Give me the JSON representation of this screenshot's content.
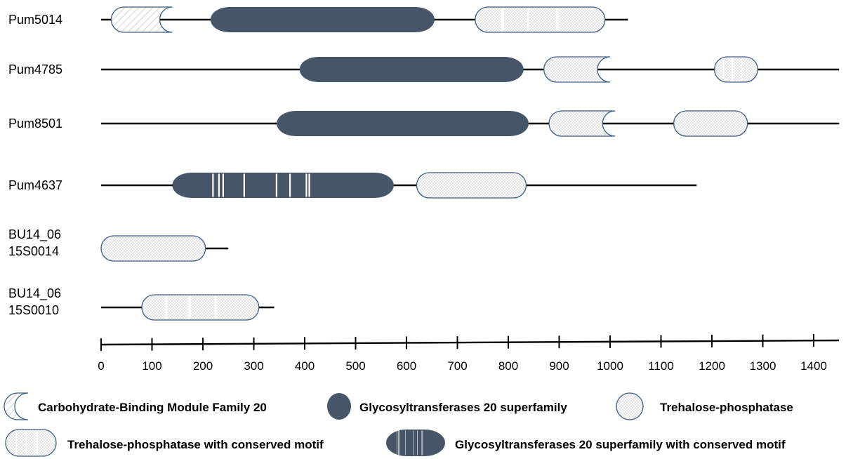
{
  "colors": {
    "gt20": "#475569",
    "outline": "#3f5b86",
    "hatch": "#c0c0c0",
    "dots": "#7d7d7d",
    "line": "#000000"
  },
  "proteins": [
    {
      "label_lines": [
        "Pum5014"
      ],
      "length": 1035,
      "domains": [
        {
          "type": "cbm20",
          "start": 20,
          "end": 140
        },
        {
          "type": "gt20",
          "start": 215,
          "end": 655
        },
        {
          "type": "tpp_motif",
          "start": 735,
          "end": 990
        }
      ]
    },
    {
      "label_lines": [
        "Pum4785"
      ],
      "length": 1450,
      "domains": [
        {
          "type": "gt20",
          "start": 390,
          "end": 830
        },
        {
          "type": "tpp_cut",
          "start": 870,
          "end": 1000
        },
        {
          "type": "tpp_motif",
          "start": 1205,
          "end": 1290
        }
      ]
    },
    {
      "label_lines": [
        "Pum8501"
      ],
      "length": 1450,
      "domains": [
        {
          "type": "gt20",
          "start": 345,
          "end": 840
        },
        {
          "type": "tpp_cut",
          "start": 880,
          "end": 1010
        },
        {
          "type": "tpp",
          "start": 1125,
          "end": 1270
        }
      ]
    },
    {
      "label_lines": [
        "Pum4637"
      ],
      "length": 1170,
      "domains": [
        {
          "type": "gt20_motif",
          "start": 140,
          "end": 575
        },
        {
          "type": "tpp",
          "start": 620,
          "end": 835
        }
      ]
    },
    {
      "label_lines": [
        "BU14_06",
        "15S0014"
      ],
      "length": 250,
      "domains": [
        {
          "type": "tpp",
          "start": 0,
          "end": 205
        }
      ]
    },
    {
      "label_lines": [
        "BU14_06",
        "15S0010"
      ],
      "length": 340,
      "domains": [
        {
          "type": "tpp_motif",
          "start": 80,
          "end": 310
        }
      ]
    }
  ],
  "axis": {
    "min": 0,
    "max": 1450,
    "ticks": [
      0,
      100,
      200,
      300,
      400,
      500,
      600,
      700,
      800,
      900,
      1000,
      1100,
      1200,
      1300,
      1400
    ]
  },
  "legend": [
    {
      "type": "cbm20",
      "label": "Carbohydrate-Binding Module Family 20"
    },
    {
      "type": "gt20",
      "label": "Glycosyltransferases 20 superfamily"
    },
    {
      "type": "tpp",
      "label": "Trehalose-phosphatase"
    },
    {
      "type": "tpp_motif",
      "label": "Trehalose-phosphatase with conserved motif"
    },
    {
      "type": "gt20_motif",
      "label": "Glycosyltransferases 20 superfamily with conserved motif"
    }
  ]
}
